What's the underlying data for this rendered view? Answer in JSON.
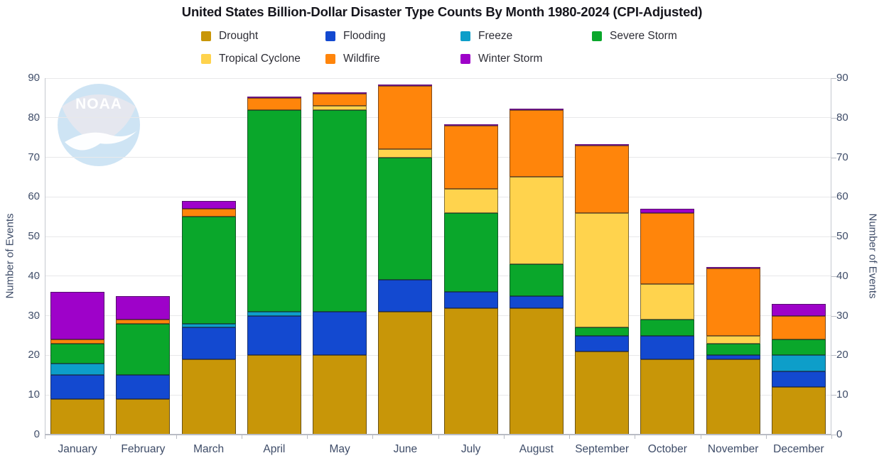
{
  "title": "United States Billion-Dollar Disaster Type Counts By Month 1980-2024 (CPI-Adjusted)",
  "watermark_text": "NOAA",
  "y_axis": {
    "left_title": "Number of Events",
    "right_title": "Number of Events"
  },
  "chart_data": {
    "type": "bar",
    "stacked": true,
    "title": "United States Billion-Dollar Disaster Type Counts By Month 1980-2024 (CPI-Adjusted)",
    "xlabel": "",
    "ylabel": "Number of Events",
    "ylim": [
      0,
      90
    ],
    "yticks": [
      0,
      10,
      20,
      30,
      40,
      50,
      60,
      70,
      80,
      90
    ],
    "grid": true,
    "legend_position": "top",
    "categories": [
      "January",
      "February",
      "March",
      "April",
      "May",
      "June",
      "July",
      "August",
      "September",
      "October",
      "November",
      "December"
    ],
    "series": [
      {
        "name": "Drought",
        "color": "#C89608",
        "values": [
          9,
          9,
          19,
          20,
          20,
          31,
          32,
          32,
          21,
          19,
          19,
          12
        ]
      },
      {
        "name": "Flooding",
        "color": "#1349D0",
        "values": [
          6,
          6,
          8,
          10,
          11,
          8,
          4,
          3,
          4,
          6,
          1,
          4
        ]
      },
      {
        "name": "Freeze",
        "color": "#0D9EC9",
        "values": [
          3,
          0,
          1,
          1,
          0,
          0,
          0,
          0,
          0,
          0,
          0,
          4
        ]
      },
      {
        "name": "Severe Storm",
        "color": "#0AA72B",
        "values": [
          5,
          13,
          27,
          51,
          51,
          31,
          20,
          8,
          2,
          4,
          3,
          4
        ]
      },
      {
        "name": "Tropical Cyclone",
        "color": "#FFD34D",
        "values": [
          0,
          0,
          0,
          0,
          1,
          2,
          6,
          22,
          29,
          9,
          2,
          0
        ]
      },
      {
        "name": "Wildfire",
        "color": "#FF850B",
        "values": [
          1,
          1,
          2,
          3,
          3,
          16,
          16,
          17,
          17,
          18,
          17,
          6
        ]
      },
      {
        "name": "Winter Storm",
        "color": "#9E02C9",
        "values": [
          12,
          6,
          2,
          0,
          0,
          0,
          0,
          0,
          0,
          1,
          0,
          3
        ]
      }
    ],
    "totals": [
      36,
      35,
      59,
      85,
      86,
      88,
      78,
      82,
      73,
      57,
      42,
      33
    ]
  }
}
